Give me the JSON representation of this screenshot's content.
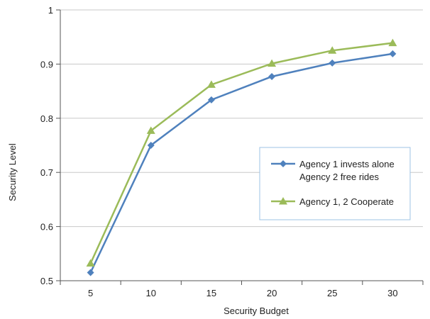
{
  "chart_data": {
    "type": "line",
    "title": "",
    "xlabel": "Security Budget",
    "ylabel": "Security Level",
    "x": [
      5,
      10,
      15,
      20,
      25,
      30
    ],
    "xticks": [
      "5",
      "10",
      "15",
      "20",
      "25",
      "30"
    ],
    "yticks": [
      "0.5",
      "0.6",
      "0.7",
      "0.8",
      "0.9",
      "1"
    ],
    "ylim": [
      0.5,
      1.0
    ],
    "grid": "horizontal",
    "legend_position": "right",
    "series": [
      {
        "name_line1": "Agency 1 invests alone",
        "name_line2": "Agency 2 free rides",
        "marker": "diamond",
        "color": "#4F81BD",
        "values": [
          0.515,
          0.75,
          0.834,
          0.877,
          0.902,
          0.919
        ]
      },
      {
        "name_line1": "Agency 1, 2 Cooperate",
        "name_line2": "",
        "marker": "triangle",
        "color": "#9BBB59",
        "values": [
          0.532,
          0.777,
          0.862,
          0.901,
          0.925,
          0.939
        ]
      }
    ]
  }
}
